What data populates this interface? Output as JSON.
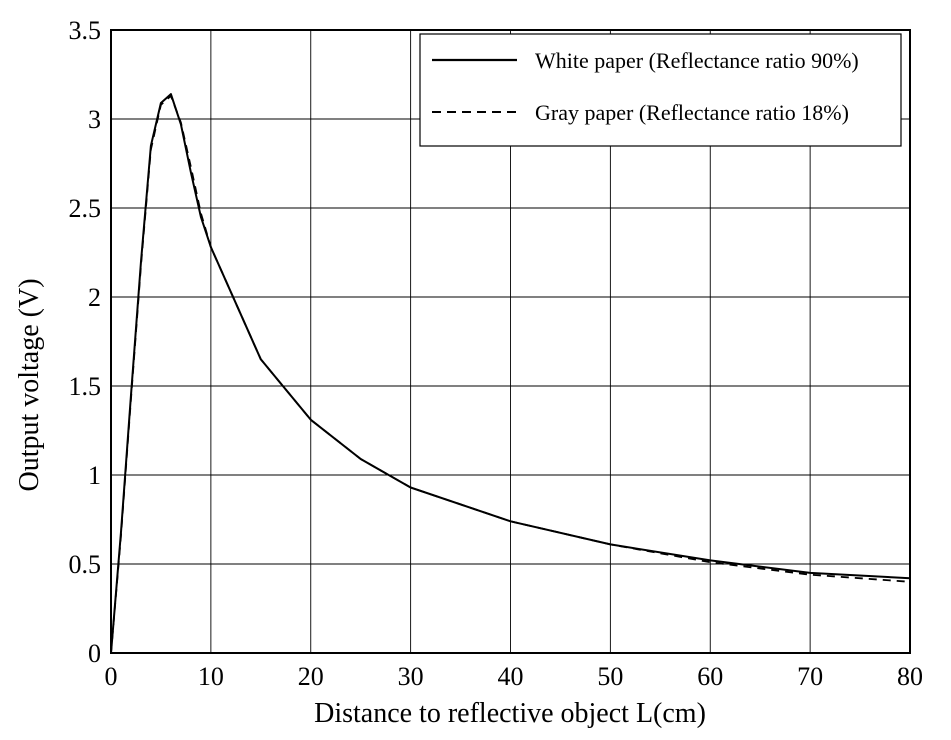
{
  "chart_data": {
    "type": "line",
    "title": "",
    "xlabel": "Distance to reflective object L(cm)",
    "ylabel": "Output voltage (V)",
    "xlim": [
      0,
      80
    ],
    "ylim": [
      0,
      3.5
    ],
    "xticks": [
      0,
      10,
      20,
      30,
      40,
      50,
      60,
      70,
      80
    ],
    "xtick_labels": [
      "0",
      "10",
      "20",
      "30",
      "40",
      "50",
      "60",
      "70",
      "80"
    ],
    "yticks": [
      0,
      0.5,
      1,
      1.5,
      2,
      2.5,
      3,
      3.5
    ],
    "ytick_labels": [
      "0",
      "0.5",
      "1",
      "1.5",
      "2",
      "2.5",
      "3",
      "3.5"
    ],
    "grid": true,
    "legend_position": "top-right",
    "series": [
      {
        "name": "White paper (Reflectance ratio 90%)",
        "style": "solid",
        "color": "#000000",
        "x": [
          0,
          1,
          2,
          3,
          4,
          5,
          6,
          7,
          8,
          9,
          10,
          15,
          20,
          25,
          30,
          40,
          50,
          60,
          70,
          80
        ],
        "y": [
          0,
          0.68,
          1.45,
          2.2,
          2.85,
          3.09,
          3.14,
          2.97,
          2.7,
          2.45,
          2.28,
          1.65,
          1.31,
          1.09,
          0.93,
          0.74,
          0.61,
          0.52,
          0.45,
          0.42
        ]
      },
      {
        "name": "Gray paper (Reflectance ratio 18%)",
        "style": "dashed",
        "color": "#000000",
        "x": [
          0,
          1,
          2,
          3,
          4,
          5,
          6,
          7,
          8,
          9,
          10,
          15,
          20,
          25,
          30,
          40,
          50,
          60,
          70,
          80
        ],
        "y": [
          0,
          0.66,
          1.43,
          2.18,
          2.83,
          3.08,
          3.13,
          2.98,
          2.73,
          2.47,
          2.28,
          1.65,
          1.31,
          1.09,
          0.93,
          0.74,
          0.61,
          0.51,
          0.44,
          0.4
        ]
      }
    ]
  }
}
